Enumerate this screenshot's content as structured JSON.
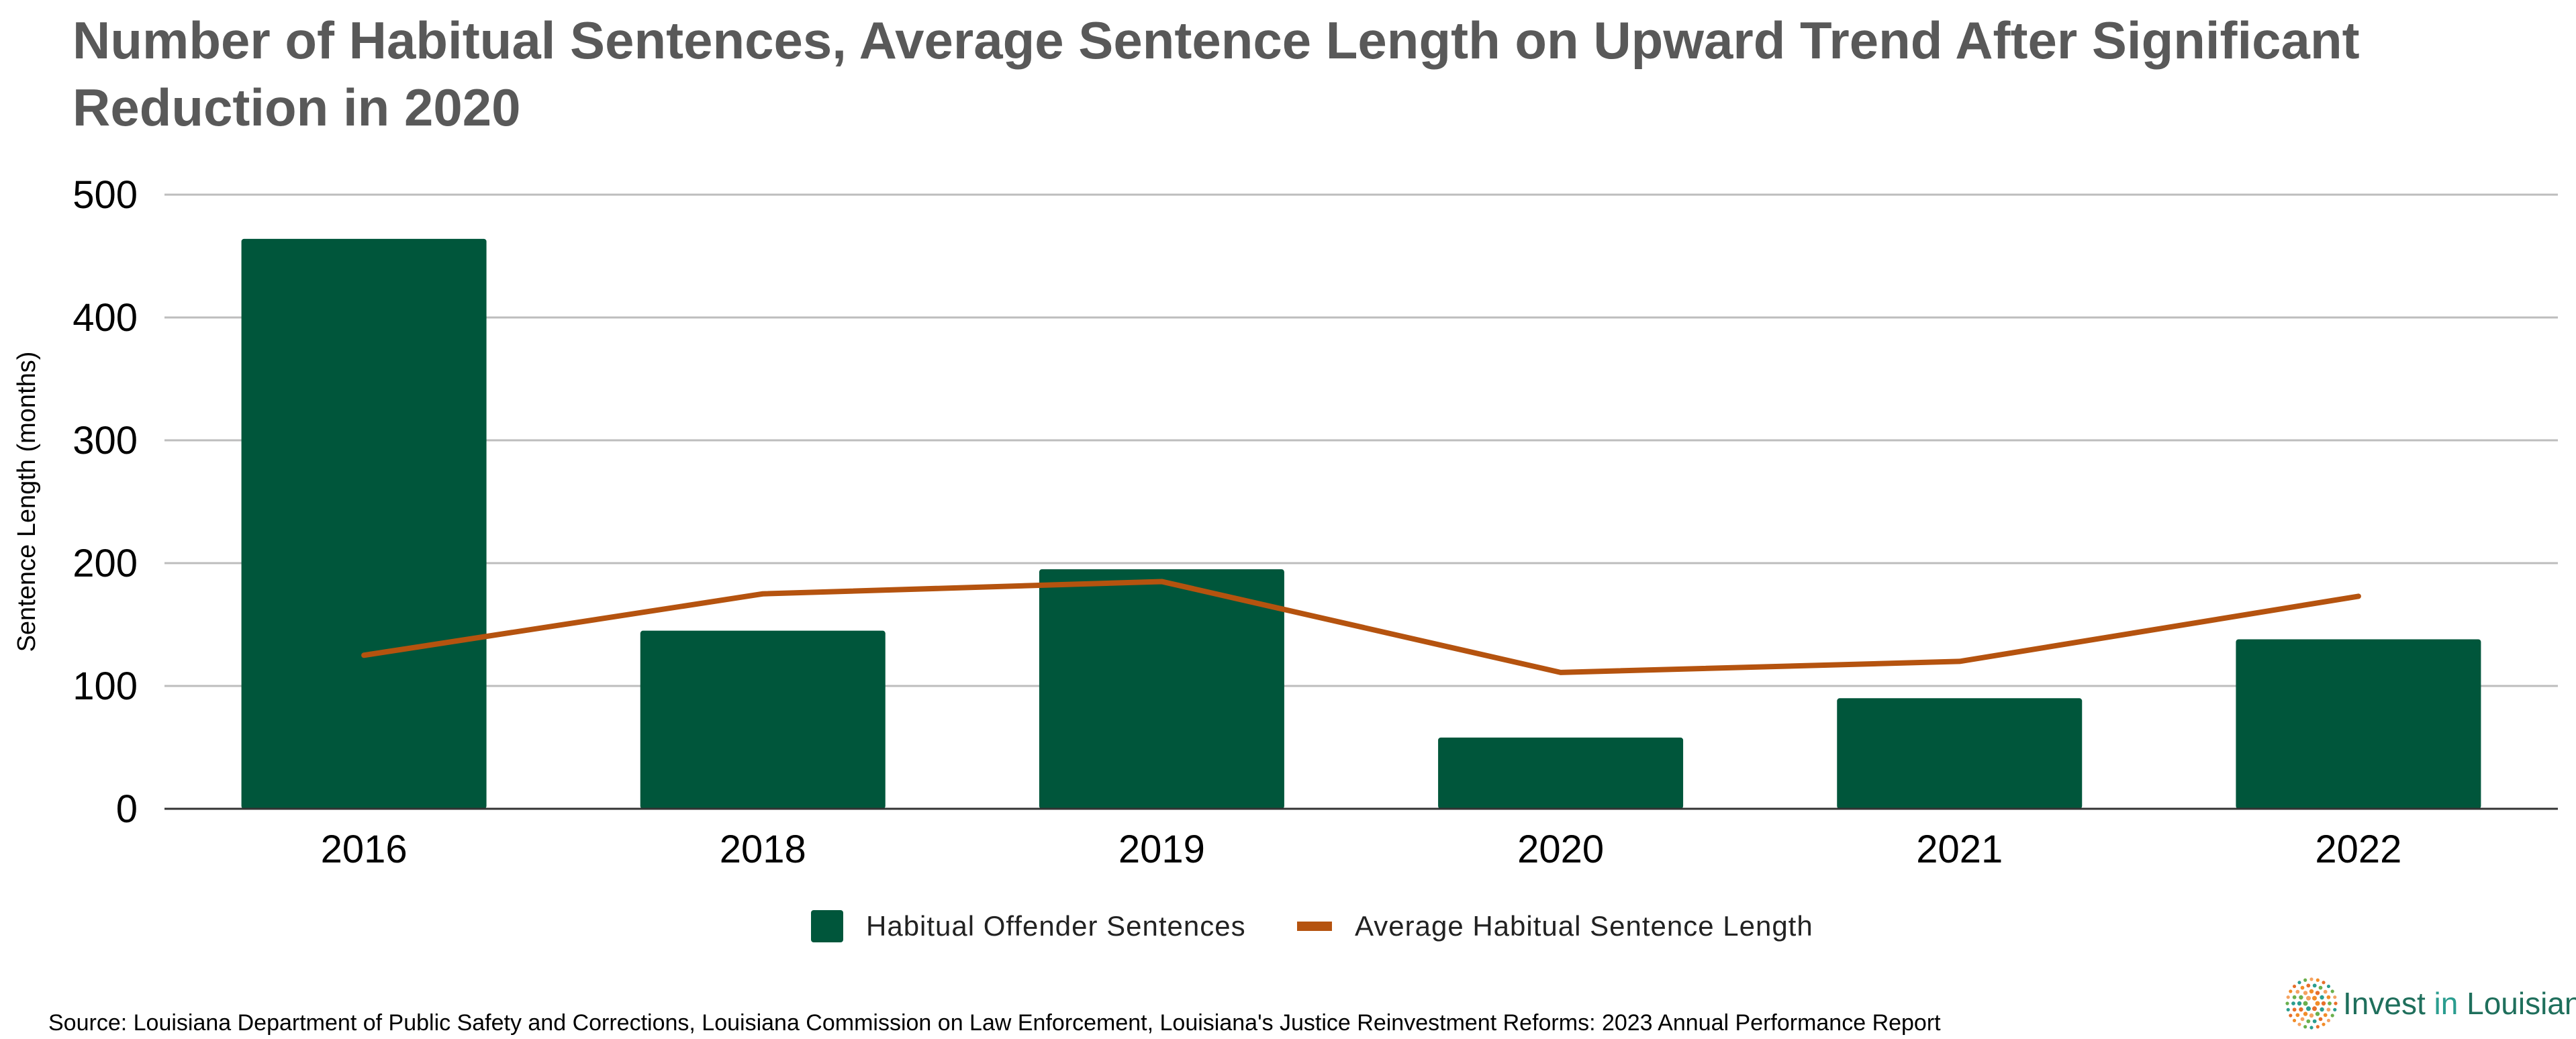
{
  "title": "Number of Habitual Sentences, Average Sentence Length on Upward Trend After Significant Reduction in 2020",
  "source": "Source: Louisiana Department of Public Safety and Corrections, Louisiana Commission on Law Enforcement, Louisiana's Justice Reinvestment Reforms: 2023 Annual Performance Report",
  "logo": {
    "text_a": "Invest ",
    "text_b": "in",
    "text_c": " Louisiana",
    "icon": "sunburst-dots-icon"
  },
  "colors": {
    "bars": "#00563b",
    "line": "#b5530f",
    "grid": "#bdbdbd",
    "axis": "#333333",
    "title": "#595959"
  },
  "chart_data": {
    "type": "bar",
    "categories": [
      "2016",
      "2018",
      "2019",
      "2020",
      "2021",
      "2022"
    ],
    "series": [
      {
        "name": "Habitual Offender Sentences",
        "type": "bar",
        "values": [
          464,
          145,
          195,
          58,
          90,
          138
        ]
      },
      {
        "name": "Average Habitual Sentence Length",
        "type": "line",
        "values": [
          125,
          175,
          185,
          111,
          120,
          173
        ]
      }
    ],
    "ylabel": "Sentence Length (months)",
    "xlabel": "",
    "ylim": [
      0,
      500
    ],
    "yticks": [
      0,
      100,
      200,
      300,
      400,
      500
    ],
    "grid": true,
    "legend": "bottom"
  }
}
